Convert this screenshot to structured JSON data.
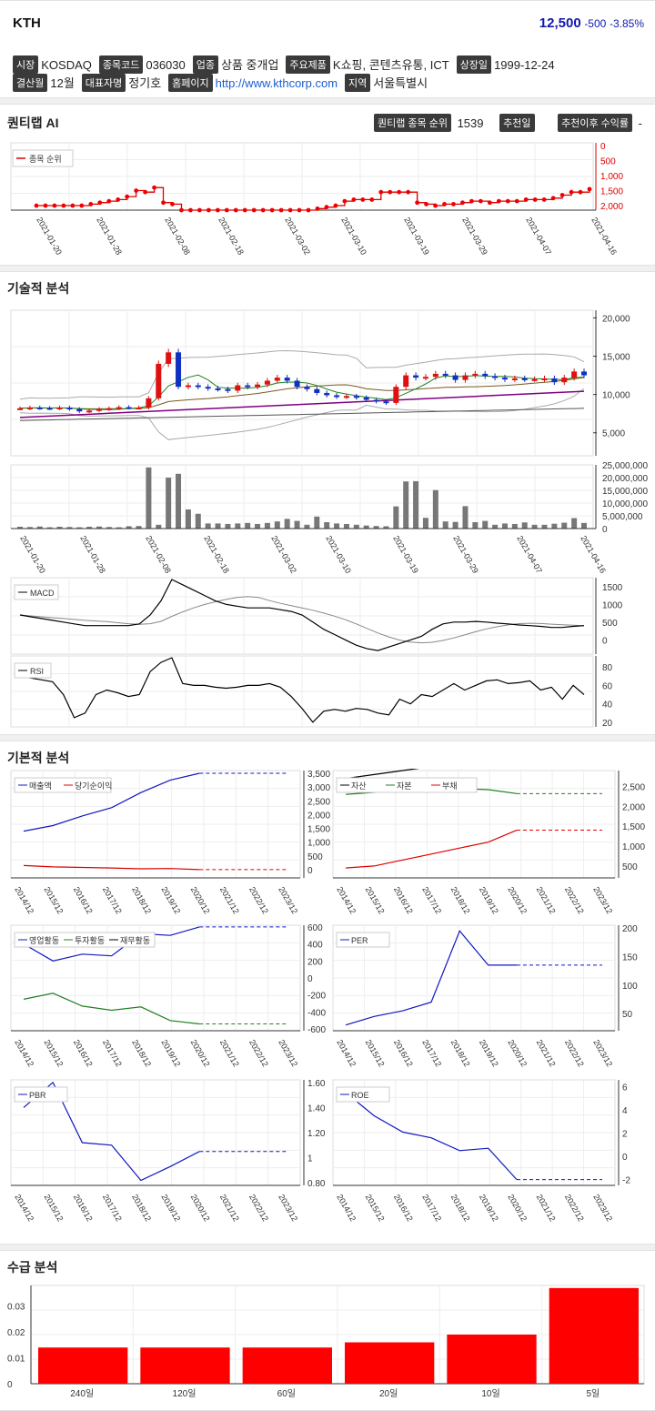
{
  "header": {
    "name": "KTH",
    "price": "12,500",
    "change": "-500",
    "pct": "-3.85%"
  },
  "info": {
    "row1": [
      [
        "시장",
        "KOSDAQ"
      ],
      [
        "종목코드",
        "036030"
      ],
      [
        "업종",
        "상품 중개업"
      ],
      [
        "주요제품",
        "K쇼핑, 콘텐츠유통, ICT"
      ],
      [
        "상장일",
        "1999-12-24"
      ]
    ],
    "row2": [
      [
        "결산월",
        "12월"
      ],
      [
        "대표자명",
        "정기호"
      ],
      [
        "홈페이지",
        "http://www.kthcorp.com"
      ],
      [
        "지역",
        "서울특별시"
      ]
    ]
  },
  "ai": {
    "title": "퀀티랩 AI",
    "rank_label": "퀀티랩 종목 순위",
    "rank_value": "1539",
    "rec_day_label": "추천일",
    "rec_ret_label": "추천이후 수익률"
  },
  "rank_chart": {
    "legend": "종목 순위",
    "yticks": [
      "0",
      "500",
      "1,000",
      "1,500",
      "2,000"
    ],
    "dates": [
      "2021-01-20",
      "2021-01-28",
      "2021-02-08",
      "2021-02-18",
      "2021-03-02",
      "2021-03-10",
      "2021-03-19",
      "2021-03-29",
      "2021-04-07",
      "2021-04-16"
    ],
    "values": [
      2000,
      2000,
      2000,
      2000,
      2000,
      2000,
      1950,
      1900,
      1850,
      1800,
      1700,
      1500,
      1550,
      1400,
      1900,
      1950,
      2150,
      2150,
      2150,
      2150,
      2150,
      2150,
      2150,
      2150,
      2150,
      2150,
      2150,
      2150,
      2150,
      2150,
      2150,
      2100,
      2050,
      2000,
      1850,
      1800,
      1800,
      1800,
      1550,
      1550,
      1550,
      1550,
      1900,
      1950,
      2000,
      1950,
      1950,
      1900,
      1850,
      1850,
      1900,
      1850,
      1850,
      1850,
      1800,
      1800,
      1800,
      1750,
      1650,
      1550,
      1550,
      1450
    ]
  },
  "tech": {
    "title": "기술적 분석",
    "price_ticks": [
      "20,000",
      "15,000",
      "10,000",
      "5,000"
    ],
    "vol_ticks": [
      "25,000,000",
      "20,000,000",
      "15,000,000",
      "10,000,000",
      "5,000,000",
      "0"
    ],
    "macd_label": "MACD",
    "macd_ticks": [
      "1500",
      "1000",
      "500",
      "0"
    ],
    "rsi_label": "RSI",
    "rsi_ticks": [
      "80",
      "60",
      "40",
      "20"
    ],
    "dates": [
      "2021-01-20",
      "2021-01-28",
      "2021-02-08",
      "2021-02-18",
      "2021-03-02",
      "2021-03-10",
      "2021-03-19",
      "2021-03-29",
      "2021-04-07",
      "2021-04-16"
    ],
    "close": [
      8200,
      8300,
      8250,
      8200,
      8300,
      8100,
      7800,
      7900,
      8100,
      8200,
      8350,
      8300,
      8300,
      9500,
      14000,
      15500,
      11000,
      11200,
      11000,
      10800,
      10700,
      10500,
      11200,
      11000,
      11300,
      11800,
      12200,
      11800,
      11000,
      10700,
      10200,
      9900,
      9700,
      9800,
      9600,
      9300,
      9100,
      8900,
      11000,
      12500,
      12200,
      12300,
      12700,
      12500,
      11900,
      12500,
      12700,
      12400,
      12200,
      12000,
      12100,
      12000,
      12000,
      12100,
      11600,
      12200,
      13000,
      12500
    ],
    "volume": [
      700000,
      600000,
      800000,
      500000,
      700000,
      600000,
      500000,
      700000,
      800000,
      600000,
      500000,
      900000,
      1000000,
      24000000,
      1500000,
      20000000,
      21500000,
      7500000,
      5800000,
      2000000,
      2000000,
      1800000,
      2000000,
      2200000,
      1800000,
      2200000,
      2800000,
      3800000,
      3000000,
      1500000,
      4700000,
      2500000,
      2000000,
      1800000,
      1500000,
      1200000,
      1000000,
      900000,
      8700000,
      18500000,
      18600000,
      4200000,
      15100000,
      2800000,
      2600000,
      8800000,
      2500000,
      3000000,
      1500000,
      2000000,
      1800000,
      2400000,
      1500000,
      1500000,
      1900000,
      2300000,
      4100000,
      2200000
    ],
    "macd": [
      700,
      650,
      600,
      550,
      500,
      450,
      400,
      400,
      400,
      400,
      400,
      450,
      700,
      1100,
      1700,
      1550,
      1400,
      1250,
      1100,
      1000,
      950,
      900,
      900,
      900,
      850,
      800,
      700,
      500,
      300,
      150,
      0,
      -150,
      -250,
      -300,
      -200,
      -100,
      0,
      100,
      300,
      450,
      500,
      500,
      520,
      500,
      470,
      450,
      420,
      400,
      380,
      350,
      350,
      380,
      400
    ]
  },
  "fund": {
    "title": "기본적 분석",
    "years": [
      "2014/12",
      "2015/12",
      "2016/12",
      "2017/12",
      "2018/12",
      "2019/12",
      "2020/12",
      "2021/12",
      "2022/12",
      "2023/12"
    ],
    "c1": {
      "legend": [
        "매출액",
        "당기순이익"
      ],
      "yticks": [
        "3,500",
        "3,000",
        "2,500",
        "2,000",
        "1,500",
        "1,000",
        "500",
        "0"
      ],
      "sales": [
        1400,
        1600,
        1950,
        2250,
        2800,
        3250,
        3500
      ],
      "net": [
        150,
        100,
        80,
        60,
        30,
        40,
        0
      ]
    },
    "c2": {
      "legend": [
        "자산",
        "자본",
        "부채"
      ],
      "yticks": [
        "2,500",
        "2,000",
        "1,500",
        "1,000",
        "500"
      ],
      "asset": [
        2700,
        2800,
        2900,
        3000,
        3200,
        3300,
        3300
      ],
      "equity": [
        2300,
        2350,
        2380,
        2430,
        2450,
        2420,
        2320
      ],
      "debt": [
        450,
        500,
        650,
        800,
        950,
        1100,
        1400
      ]
    },
    "c3": {
      "legend": [
        "영업활동",
        "투자활동",
        "재무활동"
      ],
      "yticks": [
        "600",
        "400",
        "200",
        "0",
        "-200",
        "-400",
        "-600"
      ],
      "op": [
        400,
        200,
        280,
        260,
        520,
        500,
        600
      ],
      "inv": [
        -250,
        -180,
        -330,
        -380,
        -340,
        -500,
        -540
      ],
      "fin": [
        0,
        0
      ]
    },
    "c4": {
      "legend": "PER",
      "yticks": [
        "200",
        "150",
        "100",
        "50"
      ],
      "per": [
        30,
        45,
        55,
        70,
        195,
        135,
        135
      ]
    },
    "c5": {
      "legend": "PBR",
      "yticks": [
        "1.60",
        "1.40",
        "1.20",
        "1",
        "0.80"
      ],
      "pbr": [
        1.4,
        1.6,
        1.12,
        1.1,
        0.82,
        0.93,
        1.05
      ]
    },
    "c6": {
      "legend": "ROE",
      "yticks": [
        "6",
        "4",
        "2",
        "0",
        "-2"
      ],
      "roe": [
        5.5,
        3.5,
        2.1,
        1.6,
        0.5,
        0.7,
        -2
      ]
    }
  },
  "supply": {
    "title": "수급 분석",
    "yticks": [
      "0.03",
      "0.02",
      "0.01",
      "0"
    ],
    "categories": [
      "240일",
      "120일",
      "60일",
      "20일",
      "10일",
      "5일"
    ],
    "values": [
      0.014,
      0.014,
      0.014,
      0.016,
      0.019,
      0.037
    ]
  },
  "colors": {
    "up": "#e01010",
    "down": "#1030c0",
    "price": "#1018b0"
  }
}
